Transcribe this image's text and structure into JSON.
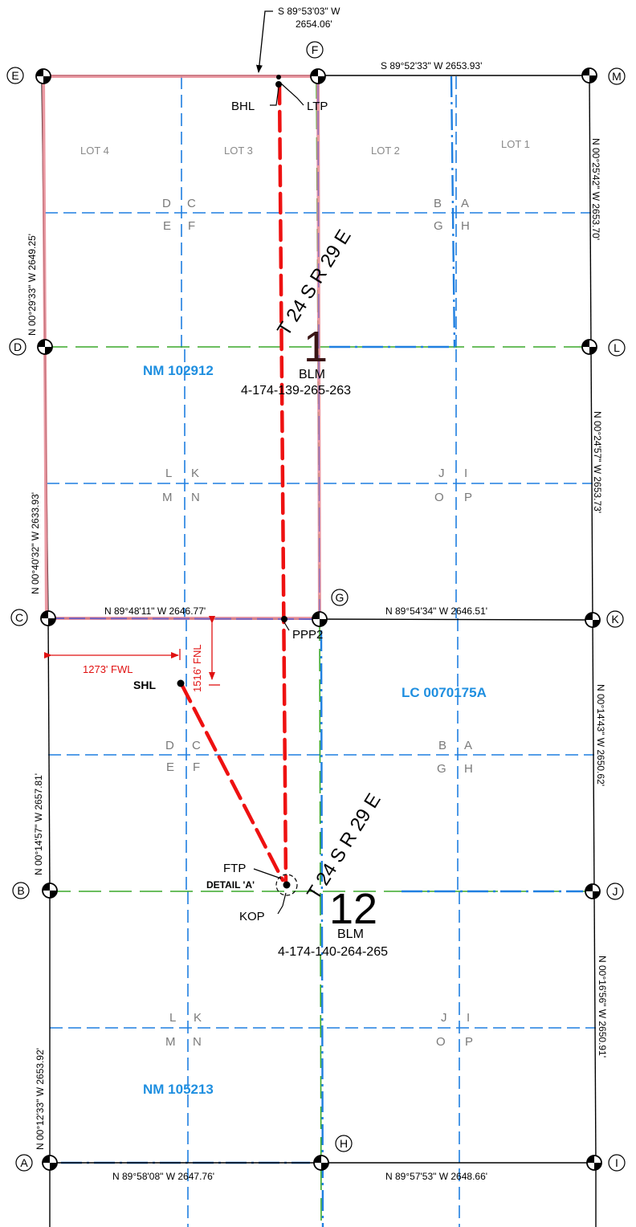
{
  "colors": {
    "section_line": "#000000",
    "quarter_line": "#1f7fe0",
    "green_line": "#3aa82a",
    "lease_outline": "#e88a94",
    "wellbore": "#ee1111",
    "offset_dim": "#e01010",
    "lease_label": "#1f8fe0"
  },
  "top_callout": {
    "bearing": "S 89°53'03\" W",
    "distance": "2654.06'"
  },
  "corners": {
    "A": "A",
    "B": "B",
    "C": "C",
    "D": "D",
    "E": "E",
    "F": "F",
    "G": "G",
    "H": "H",
    "I": "I",
    "J": "J",
    "K": "K",
    "L": "L",
    "M": "M"
  },
  "bearings": {
    "F_M": "S 89°52'33\" W  2653.93'",
    "C_G": "N 89°48'11\" W  2646.77'",
    "G_K": "N 89°54'34\" W  2646.51'",
    "A_H": "N 89°58'08\" W  2647.76'",
    "H_I": "N 89°57'53\" W  2648.66'",
    "E_D": "N 00°29'33\" W  2649.25'",
    "D_C": "N 00°40'32\" W  2633.93'",
    "C_B": "N 00°14'57\" W  2657.81'",
    "B_A": "N 00°12'33\" W  2653.92'",
    "M_L": "N 00°25'42\" W  2653.70'",
    "L_K": "N 00°24'57\" W  2653.73'",
    "K_J": "N 00°14'43\" W  2650.62'",
    "J_I": "N 00°16'56\" W  2650.91'"
  },
  "lots": [
    "LOT 4",
    "LOT 3",
    "LOT 2",
    "LOT 1"
  ],
  "quarter_quarters": {
    "s1_nw": [
      "D",
      "C",
      "E",
      "F"
    ],
    "s1_ne": [
      "B",
      "A",
      "G",
      "H"
    ],
    "s1_sw": [
      "L",
      "K",
      "M",
      "N"
    ],
    "s1_se": [
      "J",
      "I",
      "O",
      "P"
    ],
    "s12_nw": [
      "D",
      "C",
      "E",
      "F"
    ],
    "s12_ne": [
      "B",
      "A",
      "G",
      "H"
    ],
    "s12_sw": [
      "L",
      "K",
      "M",
      "N"
    ],
    "s12_se": [
      "J",
      "I",
      "O",
      "P"
    ]
  },
  "leases": {
    "nw1": "NM 102912",
    "e12": "LC 0070175A",
    "sw12": "NM 105213"
  },
  "sections": {
    "s1": {
      "township": "T 24 S  R 29 E",
      "number": "1",
      "agency": "BLM",
      "id": "4-174-139-265-263"
    },
    "s12": {
      "township": "T 24 S  R 29 E",
      "number": "12",
      "agency": "BLM",
      "id": "4-174-140-264-265"
    }
  },
  "well_points": {
    "bhl": "BHL",
    "ltp": "LTP",
    "ppp2": "PPP2",
    "shl": "SHL",
    "ftp": "FTP",
    "kop": "KOP",
    "detail": "DETAIL 'A'"
  },
  "offsets": {
    "fnl": "1516' FNL",
    "fwl": "1273' FWL"
  }
}
